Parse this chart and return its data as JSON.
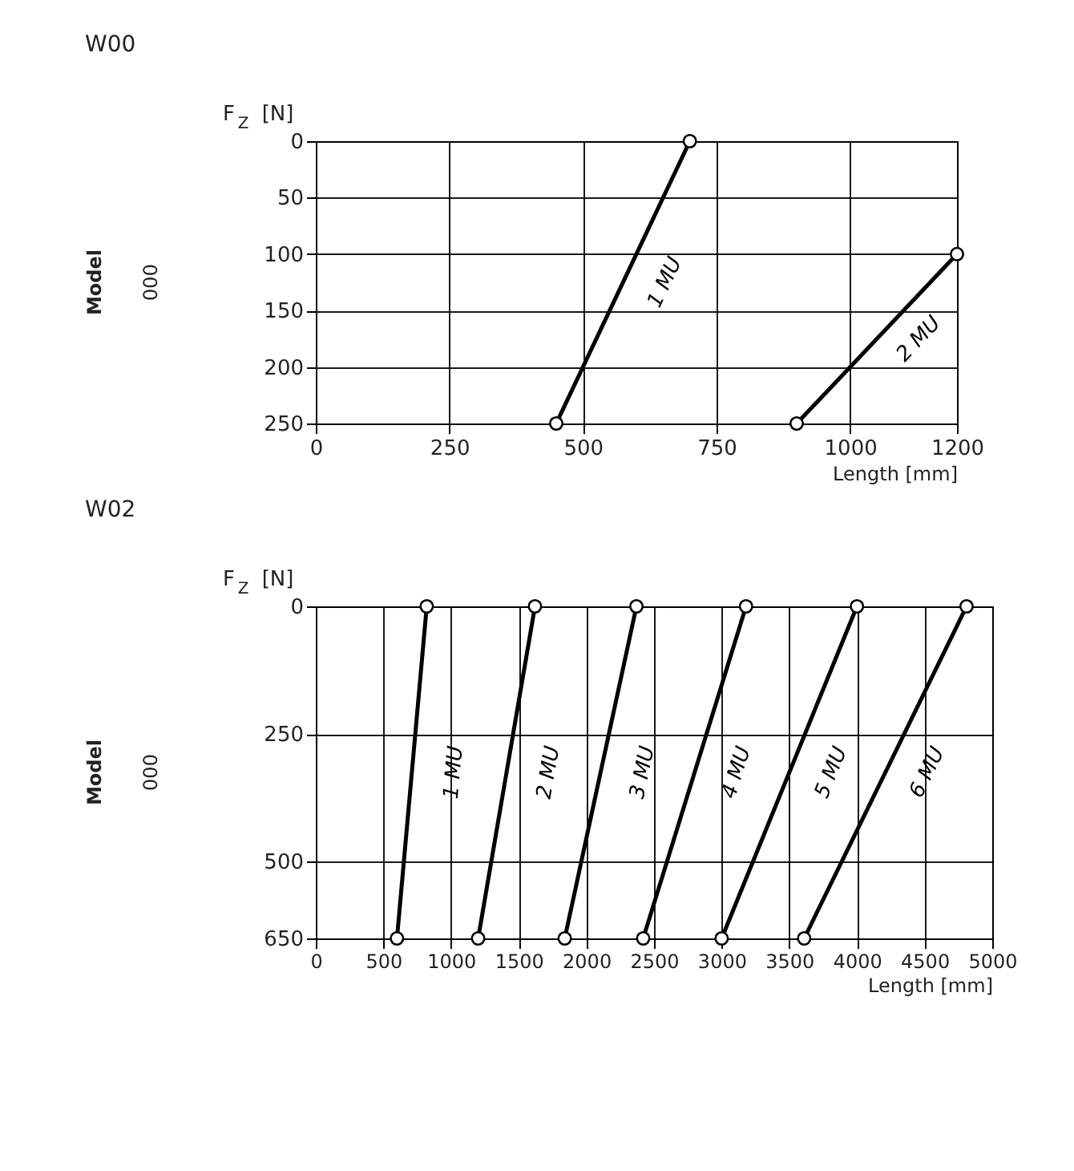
{
  "chart_data": [
    {
      "type": "line",
      "title": "W00",
      "xlabel": "Length [mm]",
      "ylabel": "F$_{Z}$ [N]",
      "annotations": [
        "Model",
        "000"
      ],
      "xlim": [
        0,
        1200
      ],
      "xticks": [
        0,
        250,
        500,
        750,
        1000,
        1200
      ],
      "ylim": [
        250,
        0
      ],
      "yticks": [
        0,
        50,
        100,
        150,
        200,
        250
      ],
      "grid": true,
      "legend": false,
      "marker": "circle",
      "line_style": "solid",
      "series": [
        {
          "name": "1 MU",
          "color": "#000000",
          "x": [
            700,
            450
          ],
          "values": [
            0,
            250
          ]
        },
        {
          "name": "2 MU",
          "color": "#000000",
          "x": [
            1200,
            900
          ],
          "values": [
            100,
            250
          ]
        }
      ]
    },
    {
      "type": "line",
      "title": "W02",
      "xlabel": "Length [mm]",
      "ylabel": "F$_{Z}$ [N]",
      "annotations": [
        "Model",
        "000"
      ],
      "xlim": [
        0,
        5000
      ],
      "xticks": [
        0,
        500,
        1000,
        1500,
        2000,
        2500,
        3000,
        3500,
        4000,
        4500,
        5000
      ],
      "ylim": [
        650,
        0
      ],
      "yticks": [
        0,
        250,
        500,
        650
      ],
      "grid": true,
      "legend": false,
      "marker": "circle",
      "line_style": "solid",
      "series": [
        {
          "name": "1 MU",
          "color": "#000000",
          "x": [
            820,
            600
          ],
          "values": [
            0,
            650
          ]
        },
        {
          "name": "2 MU",
          "color": "#000000",
          "x": [
            1620,
            1200
          ],
          "values": [
            0,
            650
          ]
        },
        {
          "name": "3 MU",
          "color": "#000000",
          "x": [
            2370,
            1840
          ],
          "values": [
            0,
            650
          ]
        },
        {
          "name": "4 MU",
          "color": "#000000",
          "x": [
            3180,
            2420
          ],
          "values": [
            0,
            650
          ]
        },
        {
          "name": "5 MU",
          "color": "#000000",
          "x": [
            4000,
            3000
          ],
          "values": [
            0,
            650
          ]
        },
        {
          "name": "6 MU",
          "color": "#000000",
          "x": [
            4810,
            3610
          ],
          "values": [
            0,
            650
          ]
        }
      ]
    }
  ]
}
